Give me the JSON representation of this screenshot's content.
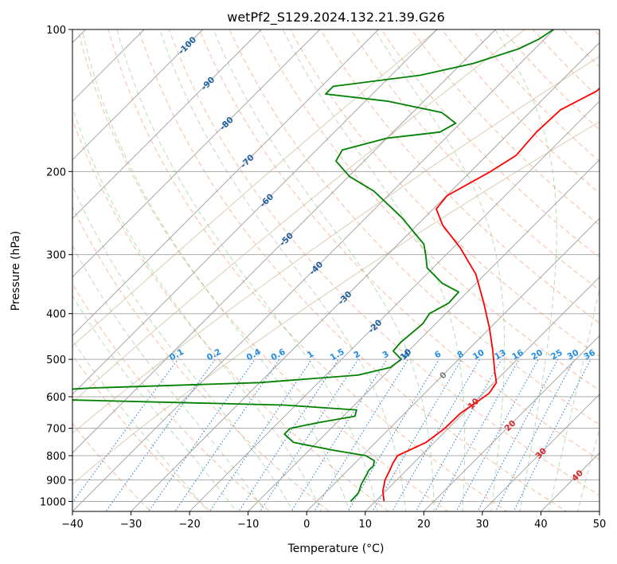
{
  "chart_data": {
    "type": "line",
    "subtype": "skew-t-log-p",
    "title": "wetPf2_S129.2024.132.21.39.G26",
    "xlabel": "Temperature (°C)",
    "ylabel": "Pressure (hPa)",
    "xlim": [
      -40,
      50
    ],
    "ylim": [
      1050,
      100
    ],
    "y_scale": "log",
    "x_ticks": [
      -40,
      -30,
      -20,
      -10,
      0,
      10,
      20,
      30,
      40,
      50
    ],
    "x_tick_labels": [
      "−40",
      "−30",
      "−20",
      "−10",
      "0",
      "10",
      "20",
      "30",
      "40",
      "50"
    ],
    "y_ticks": [
      1000,
      900,
      800,
      700,
      600,
      500,
      400,
      300,
      200,
      100
    ],
    "y_tick_labels": [
      "1000",
      "900",
      "800",
      "700",
      "600",
      "500",
      "400",
      "300",
      "200",
      "100"
    ],
    "grid": true,
    "series": [
      {
        "color": "#ff0000",
        "points": [
          {
            "p": 1000,
            "t": 11.5
          },
          {
            "p": 950,
            "t": 9.5
          },
          {
            "p": 900,
            "t": 8.0
          },
          {
            "p": 860,
            "t": 7.2
          },
          {
            "p": 830,
            "t": 6.5
          },
          {
            "p": 800,
            "t": 6.0
          },
          {
            "p": 780,
            "t": 7.0
          },
          {
            "p": 750,
            "t": 8.6
          },
          {
            "p": 700,
            "t": 9.4
          },
          {
            "p": 650,
            "t": 9.5
          },
          {
            "p": 620,
            "t": 10.3
          },
          {
            "p": 590,
            "t": 11.0
          },
          {
            "p": 560,
            "t": 10.4
          },
          {
            "p": 530,
            "t": 8.2
          },
          {
            "p": 480,
            "t": 4.4
          },
          {
            "p": 430,
            "t": 0.0
          },
          {
            "p": 380,
            "t": -5.3
          },
          {
            "p": 330,
            "t": -11.6
          },
          {
            "p": 290,
            "t": -18.8
          },
          {
            "p": 260,
            "t": -25.6
          },
          {
            "p": 240,
            "t": -29.5
          },
          {
            "p": 225,
            "t": -29.9
          },
          {
            "p": 200,
            "t": -26.6
          },
          {
            "p": 185,
            "t": -25.0
          },
          {
            "p": 165,
            "t": -25.5
          },
          {
            "p": 148,
            "t": -25.2
          },
          {
            "p": 135,
            "t": -22.2
          },
          {
            "p": 120,
            "t": -22.4
          },
          {
            "p": 110,
            "t": -23.6
          },
          {
            "p": 100,
            "t": -23.4
          }
        ]
      },
      {
        "color": "#008000",
        "points": [
          {
            "p": 1000,
            "t": 5.8
          },
          {
            "p": 960,
            "t": 5.7
          },
          {
            "p": 920,
            "t": 4.7
          },
          {
            "p": 880,
            "t": 4.0
          },
          {
            "p": 860,
            "t": 3.6
          },
          {
            "p": 840,
            "t": 3.6
          },
          {
            "p": 820,
            "t": 2.9
          },
          {
            "p": 800,
            "t": 0.6
          },
          {
            "p": 780,
            "t": -5.6
          },
          {
            "p": 750,
            "t": -14.0
          },
          {
            "p": 720,
            "t": -17.0
          },
          {
            "p": 700,
            "t": -17.0
          },
          {
            "p": 680,
            "t": -13.0
          },
          {
            "p": 660,
            "t": -8.0
          },
          {
            "p": 640,
            "t": -8.8
          },
          {
            "p": 625,
            "t": -22.0
          },
          {
            "p": 610,
            "t": -58.0
          },
          {
            "p": 600,
            "t": -75.0
          },
          {
            "p": 590,
            "t": -72.0
          },
          {
            "p": 575,
            "t": -58.0
          },
          {
            "p": 560,
            "t": -30.0
          },
          {
            "p": 540,
            "t": -14.5
          },
          {
            "p": 520,
            "t": -10.3
          },
          {
            "p": 500,
            "t": -9.8
          },
          {
            "p": 480,
            "t": -12.6
          },
          {
            "p": 460,
            "t": -12.8
          },
          {
            "p": 440,
            "t": -12.5
          },
          {
            "p": 420,
            "t": -12.2
          },
          {
            "p": 400,
            "t": -12.8
          },
          {
            "p": 380,
            "t": -11.3
          },
          {
            "p": 360,
            "t": -11.5
          },
          {
            "p": 345,
            "t": -15.8
          },
          {
            "p": 320,
            "t": -21.0
          },
          {
            "p": 300,
            "t": -23.5
          },
          {
            "p": 285,
            "t": -25.6
          },
          {
            "p": 250,
            "t": -34.0
          },
          {
            "p": 220,
            "t": -43.2
          },
          {
            "p": 205,
            "t": -49.8
          },
          {
            "p": 190,
            "t": -54.8
          },
          {
            "p": 180,
            "t": -55.6
          },
          {
            "p": 170,
            "t": -50.0
          },
          {
            "p": 165,
            "t": -42.0
          },
          {
            "p": 158,
            "t": -40.8
          },
          {
            "p": 150,
            "t": -45.0
          },
          {
            "p": 142,
            "t": -56.0
          },
          {
            "p": 137,
            "t": -68.0
          },
          {
            "p": 132,
            "t": -68.0
          },
          {
            "p": 125,
            "t": -55.0
          },
          {
            "p": 118,
            "t": -48.0
          },
          {
            "p": 110,
            "t": -42.8
          },
          {
            "p": 105,
            "t": -41.0
          },
          {
            "p": 100,
            "t": -40.1
          }
        ]
      }
    ],
    "mixing_ratio_labels": [
      "0.1",
      "0.2",
      "0.4",
      "0.6",
      "1",
      "1.5",
      "2",
      "3",
      "4",
      "6",
      "8",
      "10",
      "13",
      "16",
      "20",
      "25",
      "30",
      "36"
    ],
    "mixing_ratio_values": [
      0.1,
      0.2,
      0.4,
      0.6,
      1,
      1.5,
      2,
      3,
      4,
      6,
      8,
      10,
      13,
      16,
      20,
      25,
      30,
      36
    ],
    "mixing_ratio_label_pressure": 500,
    "dry_adiabat_labels": [
      {
        "text": "-100",
        "p": 108
      },
      {
        "text": "-90",
        "p": 130
      },
      {
        "text": "-80",
        "p": 158
      },
      {
        "text": "-70",
        "p": 190
      },
      {
        "text": "-60",
        "p": 230
      },
      {
        "text": "-50",
        "p": 278
      },
      {
        "text": "-40",
        "p": 320
      },
      {
        "text": "-30",
        "p": 370
      },
      {
        "text": "-20",
        "p": 425
      },
      {
        "text": "-10",
        "p": 490
      }
    ],
    "moist_adiabat_labels": [
      {
        "text": "0",
        "p": 540,
        "color": "#808080"
      },
      {
        "text": "10",
        "p": 620,
        "color": "#d62728"
      },
      {
        "text": "20",
        "p": 690,
        "color": "#d62728"
      },
      {
        "text": "30",
        "p": 790,
        "color": "#d62728"
      },
      {
        "text": "40",
        "p": 880,
        "color": "#d62728"
      }
    ]
  }
}
